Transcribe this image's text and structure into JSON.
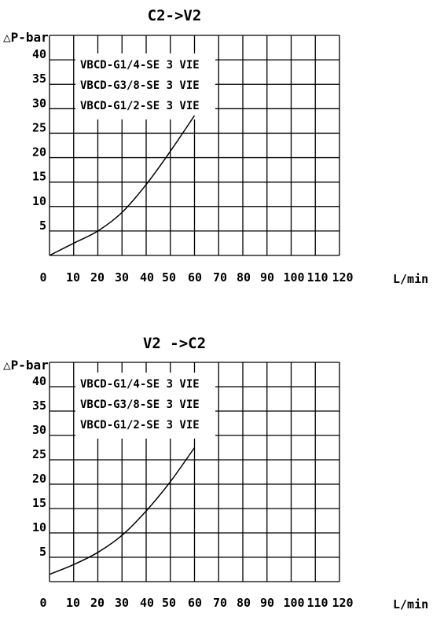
{
  "chart_data": [
    {
      "type": "line",
      "title": "C2->V2",
      "ylabel": "△P-bar",
      "xlabel": "L/min",
      "x_ticks": [
        "0",
        "10",
        "20",
        "30",
        "40",
        "50",
        "60",
        "70",
        "80",
        "90",
        "100",
        "110",
        "120"
      ],
      "y_ticks": [
        "5",
        "10",
        "15",
        "20",
        "25",
        "30",
        "35",
        "40"
      ],
      "xlim": [
        0,
        120
      ],
      "ylim": [
        0,
        45
      ],
      "grid": true,
      "legend_entries": [
        "VBCD-G1/4-SE 3 VIE",
        "VBCD-G3/8-SE 3 VIE",
        "VBCD-G1/2-SE 3 VIE"
      ],
      "series": [
        {
          "x": [
            0,
            10,
            20,
            30,
            40,
            50,
            60
          ],
          "y": [
            0,
            2.5,
            5,
            8.8,
            14.5,
            21.3,
            28.6
          ]
        }
      ]
    },
    {
      "type": "line",
      "title": "V2 ->C2",
      "ylabel": "△P-bar",
      "xlabel": "L/min",
      "x_ticks": [
        "0",
        "10",
        "20",
        "30",
        "40",
        "50",
        "60",
        "70",
        "80",
        "90",
        "100",
        "110",
        "120"
      ],
      "y_ticks": [
        "5",
        "10",
        "15",
        "20",
        "25",
        "30",
        "35",
        "40"
      ],
      "xlim": [
        0,
        120
      ],
      "ylim": [
        0,
        45
      ],
      "grid": true,
      "legend_entries": [
        "VBCD-G1/4-SE 3 VIE",
        "VBCD-G3/8-SE 3 VIE",
        "VBCD-G1/2-SE 3 VIE"
      ],
      "series": [
        {
          "x": [
            0,
            10,
            20,
            30,
            40,
            50,
            60
          ],
          "y": [
            1.5,
            3.5,
            6,
            9.5,
            14.5,
            20.5,
            27.5
          ]
        }
      ]
    }
  ]
}
